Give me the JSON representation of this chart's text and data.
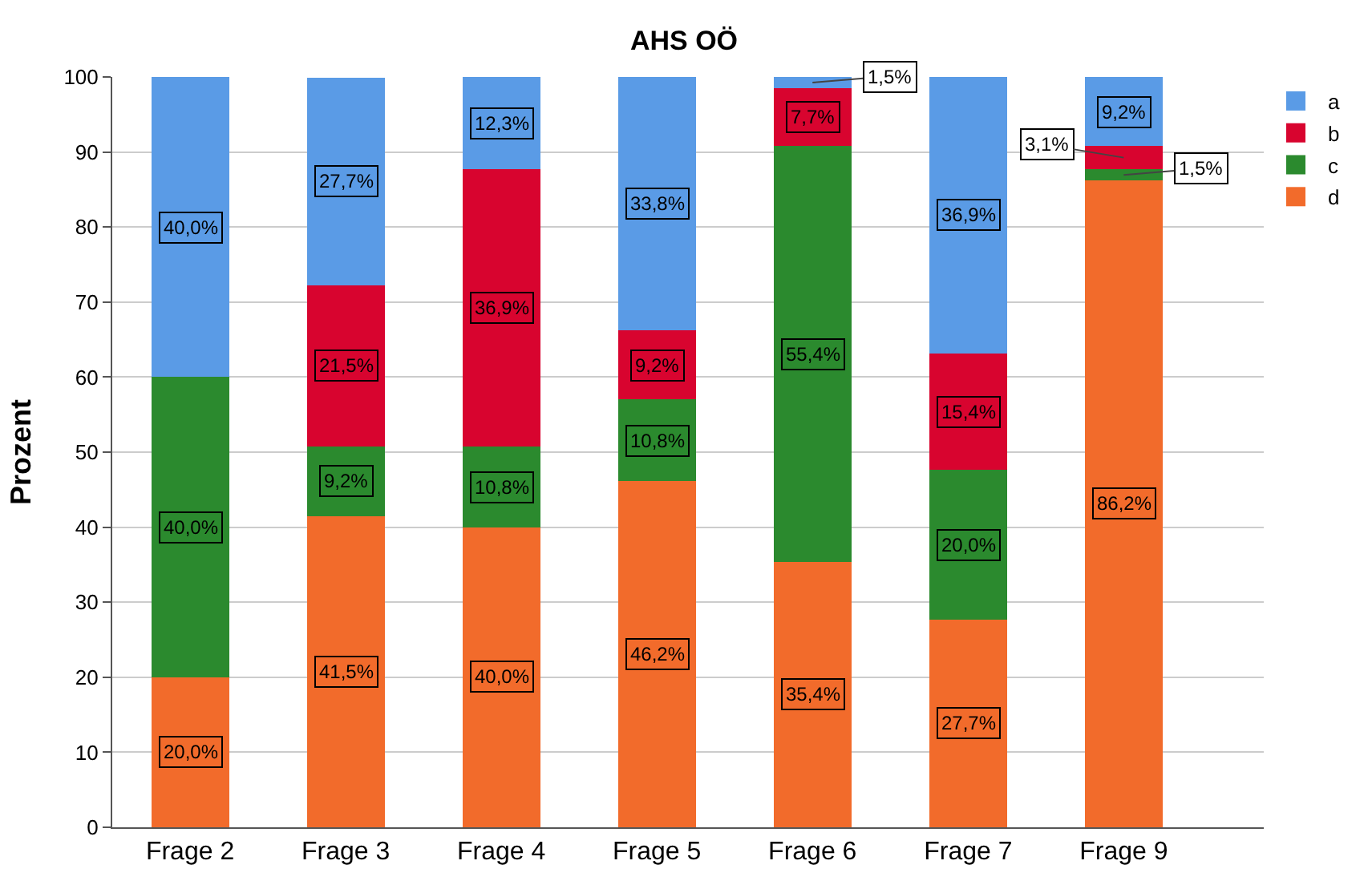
{
  "chart_data": {
    "type": "bar",
    "title": "AHS OÖ",
    "ylabel": "Prozent",
    "stacked": true,
    "categories": [
      "Frage 2",
      "Frage 3",
      "Frage 4",
      "Frage 5",
      "Frage 6",
      "Frage 7",
      "Frage 9"
    ],
    "series": [
      {
        "name": "d",
        "color": "#f26b2b",
        "values": [
          20.0,
          41.5,
          40.0,
          46.2,
          35.4,
          27.7,
          86.2
        ],
        "value_labels": [
          "20,0%",
          "41,5%",
          "40,0%",
          "46,2%",
          "35,4%",
          "27,7%",
          "86,2%"
        ]
      },
      {
        "name": "c",
        "color": "#2b8a2e",
        "values": [
          40.0,
          9.2,
          10.8,
          10.8,
          55.4,
          20.0,
          1.5
        ],
        "value_labels": [
          "40,0%",
          "9,2%",
          "10,8%",
          "10,8%",
          "55,4%",
          "20,0%",
          "1,5%"
        ]
      },
      {
        "name": "b",
        "color": "#d8042f",
        "values": [
          null,
          21.5,
          36.9,
          9.2,
          7.7,
          15.4,
          3.1
        ],
        "value_labels": [
          null,
          "21,5%",
          "36,9%",
          "9,2%",
          "7,7%",
          "15,4%",
          "3,1%"
        ]
      },
      {
        "name": "a",
        "color": "#5a9be6",
        "values": [
          40.0,
          27.7,
          12.3,
          33.8,
          1.5,
          36.9,
          9.2
        ],
        "value_labels": [
          "40,0%",
          "27,7%",
          "12,3%",
          "33,8%",
          "1,5%",
          "36,9%",
          "9,2%"
        ]
      }
    ],
    "ylim": [
      0,
      100
    ],
    "yticks": [
      0,
      10,
      20,
      30,
      40,
      50,
      60,
      70,
      80,
      90,
      100
    ],
    "grid": "y",
    "legend": "right"
  }
}
